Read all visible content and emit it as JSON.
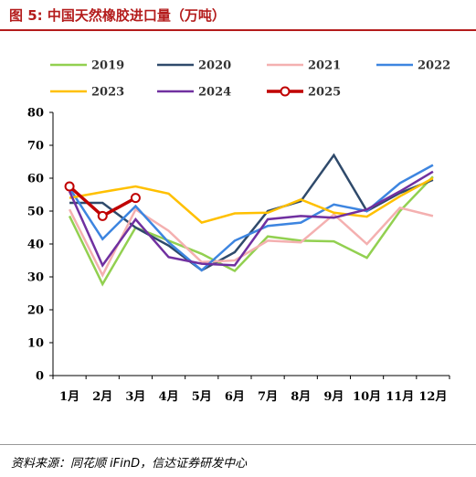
{
  "header": {
    "title": "图 5:  中国天然橡胶进口量（万吨）"
  },
  "footer": {
    "source": "资料来源：同花顺 iFinD，信达证券研发中心"
  },
  "chart_data": {
    "type": "line",
    "categories": [
      "1月",
      "2月",
      "3月",
      "4月",
      "5月",
      "6月",
      "7月",
      "8月",
      "9月",
      "10月",
      "11月",
      "12月"
    ],
    "ylim": [
      0,
      80
    ],
    "yticks": [
      0,
      10,
      20,
      30,
      40,
      50,
      60,
      70,
      80
    ],
    "grid": false,
    "legend_position": "top",
    "series": [
      {
        "name": "2019",
        "color": "#92d050",
        "width": 2.5,
        "marker": false,
        "values": [
          48.5,
          27.8,
          45.0,
          41.0,
          37.0,
          31.8,
          42.3,
          41.0,
          40.8,
          35.8,
          50.0,
          60.5
        ]
      },
      {
        "name": "2020",
        "color": "#2f4a6b",
        "width": 2.5,
        "marker": false,
        "values": [
          52.5,
          52.5,
          45.0,
          39.5,
          32.0,
          37.5,
          50.0,
          53.0,
          67.0,
          50.0,
          55.5,
          59.5
        ]
      },
      {
        "name": "2021",
        "color": "#f4b0b0",
        "width": 2.5,
        "marker": false,
        "values": [
          50.5,
          30.5,
          50.5,
          44.0,
          34.5,
          35.0,
          41.0,
          40.5,
          49.0,
          40.0,
          51.0,
          48.5
        ]
      },
      {
        "name": "2022",
        "color": "#3d85e0",
        "width": 2.5,
        "marker": false,
        "values": [
          57.0,
          41.5,
          51.5,
          40.5,
          32.0,
          41.0,
          45.5,
          46.5,
          52.0,
          50.0,
          58.5,
          64.0
        ]
      },
      {
        "name": "2023",
        "color": "#ffc000",
        "width": 2.5,
        "marker": false,
        "values": [
          54.0,
          55.8,
          57.5,
          55.3,
          46.5,
          49.3,
          49.5,
          53.5,
          49.5,
          48.3,
          54.5,
          60.0
        ]
      },
      {
        "name": "2024",
        "color": "#7030a0",
        "width": 2.5,
        "marker": false,
        "values": [
          56.0,
          33.5,
          47.5,
          36.0,
          34.0,
          33.5,
          47.5,
          48.5,
          48.0,
          50.5,
          56.0,
          62.0
        ]
      },
      {
        "name": "2025",
        "color": "#c00000",
        "width": 3.5,
        "marker": true,
        "values": [
          57.5,
          48.5,
          54.0,
          null,
          null,
          null,
          null,
          null,
          null,
          null,
          null,
          null
        ]
      }
    ]
  }
}
